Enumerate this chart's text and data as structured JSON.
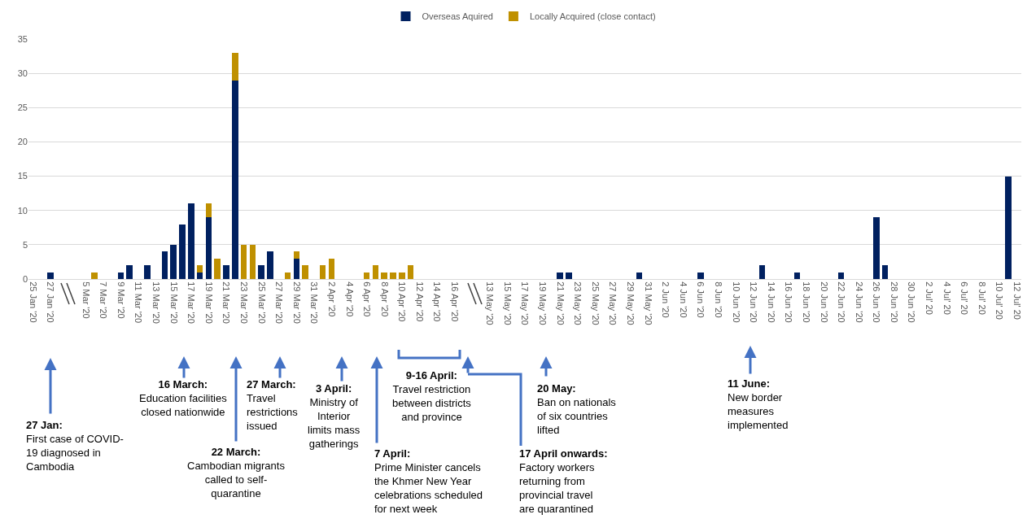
{
  "chart_data": {
    "type": "bar",
    "stacked": true,
    "categories": [
      "25 Jan '20",
      null,
      "27 Jan '20",
      null,
      null,
      null,
      "5 Mar '20",
      null,
      "7 Mar '20",
      null,
      "9 Mar '20",
      null,
      "11 Mar '20",
      null,
      "13 Mar '20",
      null,
      "15 Mar '20",
      null,
      "17 Mar '20",
      null,
      "19 Mar '20",
      null,
      "21 Mar '20",
      null,
      "23 Mar '20",
      null,
      "25 Mar '20",
      null,
      "27 Mar '20",
      null,
      "29 Mar '20",
      null,
      "31 Mar '20",
      null,
      "2 Apr '20",
      null,
      "4 Apr '20",
      null,
      "6 Apr '20",
      null,
      "8 Apr '20",
      null,
      "10 Apr '20",
      null,
      "12 Apr '20",
      null,
      "14 Apr '20",
      null,
      "16 Apr '20",
      null,
      null,
      null,
      "13 May '20",
      null,
      "15 May '20",
      null,
      "17 May '20",
      null,
      "19 May '20",
      null,
      "21 May '20",
      null,
      "23 May '20",
      null,
      "25 May '20",
      null,
      "27 May '20",
      null,
      "29 May '20",
      null,
      "31 May '20",
      null,
      "2 Jun '20",
      null,
      "4 Jun '20",
      null,
      "6 Jun '20",
      null,
      "8 Jun '20",
      null,
      "10 Jun '20",
      null,
      "12 Jun '20",
      null,
      "14 Jun '20",
      null,
      "16 Jun '20",
      null,
      "18 Jun '20",
      null,
      "20 Jun '20",
      null,
      "22 Jun '20",
      null,
      "24 Jun '20",
      null,
      "26 Jun '20",
      null,
      "28 Jun '20",
      null,
      "30 Jun '20",
      null,
      "2 Jul' 20",
      null,
      "4 Jul' 20",
      null,
      "6 Jul' 20",
      null,
      "8 Jul' 20",
      null,
      "10 Jul' 20",
      null,
      "12 Jul' 20"
    ],
    "series": [
      {
        "name": "Overseas Aquired",
        "color": "#002060",
        "values": [
          0,
          0,
          1,
          0,
          0,
          0,
          0,
          0,
          0,
          0,
          1,
          2,
          0,
          2,
          0,
          4,
          5,
          8,
          11,
          1,
          9,
          0,
          2,
          29,
          0,
          0,
          2,
          4,
          0,
          0,
          3,
          0,
          0,
          0,
          0,
          0,
          0,
          0,
          0,
          0,
          0,
          0,
          0,
          0,
          0,
          0,
          0,
          0,
          0,
          0,
          0,
          0,
          0,
          0,
          0,
          0,
          0,
          0,
          0,
          0,
          1,
          1,
          0,
          0,
          0,
          0,
          0,
          0,
          0,
          1,
          0,
          0,
          0,
          0,
          0,
          0,
          1,
          0,
          0,
          0,
          0,
          0,
          0,
          2,
          0,
          0,
          0,
          1,
          0,
          0,
          0,
          0,
          1,
          0,
          0,
          0,
          9,
          2,
          0,
          0,
          0,
          0,
          0,
          0,
          0,
          0,
          0,
          0,
          0,
          0,
          0,
          15,
          0
        ]
      },
      {
        "name": "Locally Acquired (close contact)",
        "color": "#bf9000",
        "values": [
          0,
          0,
          0,
          0,
          0,
          0,
          0,
          1,
          0,
          0,
          0,
          0,
          0,
          0,
          0,
          0,
          0,
          0,
          0,
          1,
          2,
          3,
          0,
          4,
          5,
          5,
          0,
          0,
          0,
          1,
          1,
          2,
          0,
          2,
          3,
          0,
          0,
          0,
          1,
          2,
          1,
          1,
          1,
          2,
          0,
          0,
          0,
          0,
          0,
          0,
          0,
          0,
          0,
          0,
          0,
          0,
          0,
          0,
          0,
          0,
          0,
          0,
          0,
          0,
          0,
          0,
          0,
          0,
          0,
          0,
          0,
          0,
          0,
          0,
          0,
          0,
          0,
          0,
          0,
          0,
          0,
          0,
          0,
          0,
          0,
          0,
          0,
          0,
          0,
          0,
          0,
          0,
          0,
          0,
          0,
          0,
          0,
          0,
          0,
          0,
          0,
          0,
          0,
          0,
          0,
          0,
          0,
          0,
          0,
          0,
          0,
          0,
          0
        ]
      }
    ],
    "ylim": [
      0,
      35
    ],
    "yticks": [
      0,
      5,
      10,
      15,
      20,
      25,
      30,
      35
    ],
    "grid": "y",
    "legend": "top",
    "annotations": [
      "27 Jan:\nFirst case of COVID-\n19 diagnosed in\nCambodia",
      "16 March:\nEducation facilities\nclosed nationwide",
      "22 March:\nCambodian migrants\ncalled to self-\nquarantine",
      "27 March:\nTravel\nrestrictions\nissued",
      "3 April:\nMinistry of\nInterior\nlimits mass\ngatherings",
      "7 April:\nPrime Minister cancels\nthe Khmer New Year\ncelebrations scheduled\nfor next week",
      "9-16 April:\nTravel restriction\nbetween districts\nand province",
      "17 April onwards:\nFactory workers\nreturning from\nprovincial travel\nare quarantined",
      "20 May:\nBan on nationals\nof six countries\nlifted",
      "11 June:\nNew border\nmeasures\nimplemented"
    ]
  }
}
